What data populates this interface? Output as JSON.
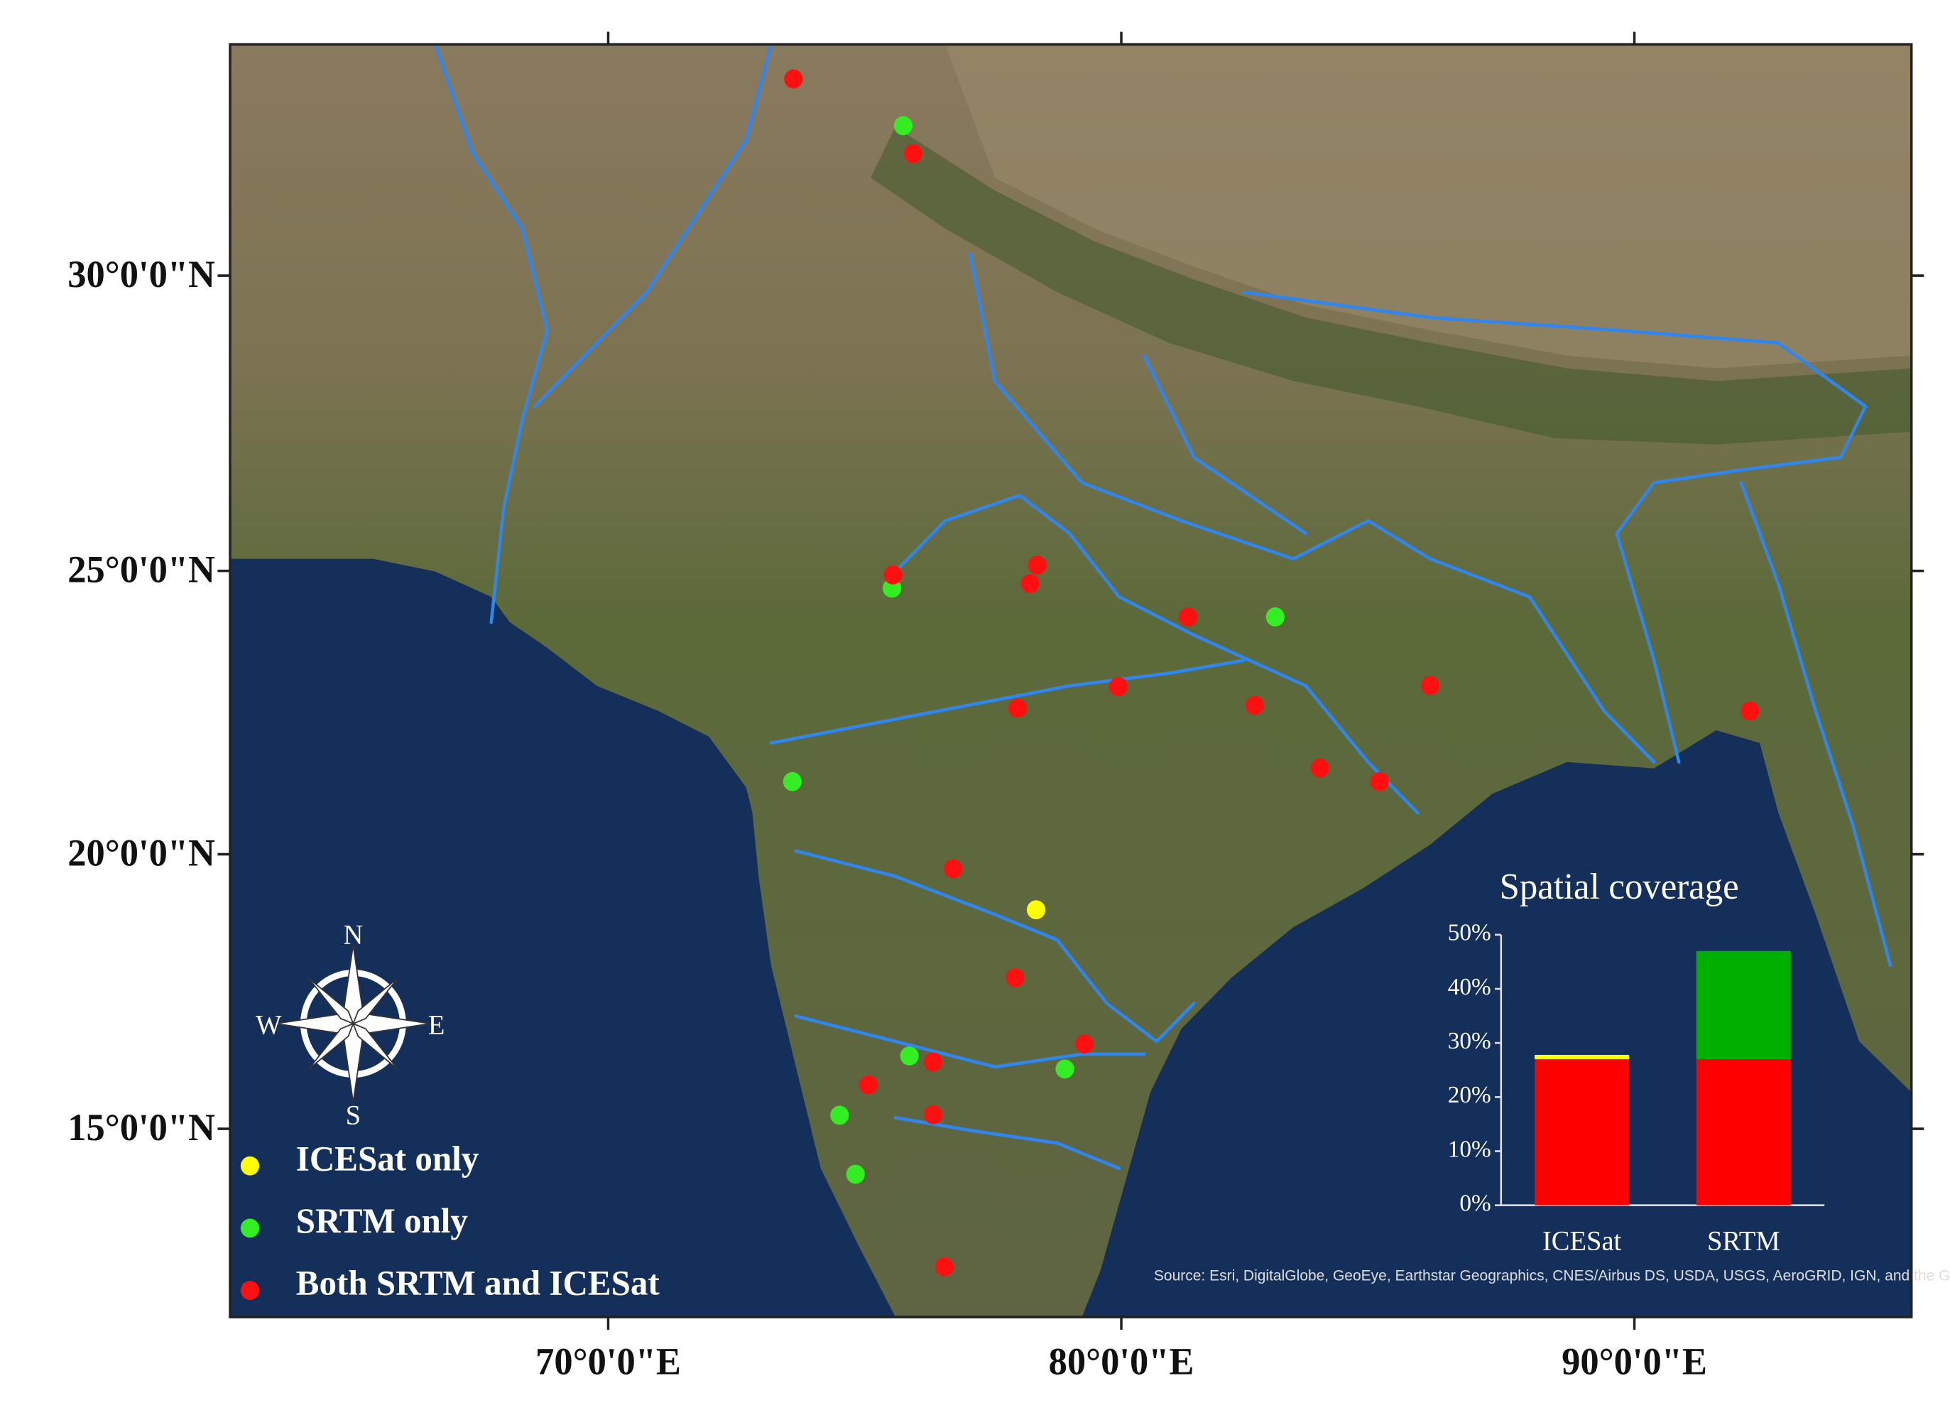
{
  "chart_data": [
    {
      "type": "scatter",
      "projection": "mercator",
      "xlim": [
        62.63,
        95.4
      ],
      "ylim": [
        11.5,
        33.75
      ],
      "xticks": [
        {
          "value": 70,
          "label": "70°0'0\"E"
        },
        {
          "value": 80,
          "label": "80°0'0\"E"
        },
        {
          "value": 90,
          "label": "90°0'0\"E"
        }
      ],
      "yticks": [
        {
          "value": 15,
          "label": "15°0'0\"N"
        },
        {
          "value": 20,
          "label": "20°0'0\"N"
        },
        {
          "value": 25,
          "label": "25°0'0\"N"
        },
        {
          "value": 30,
          "label": "30°0'0\"N"
        }
      ],
      "legend": "bottom-left",
      "series": [
        {
          "name": "ICESat only",
          "color": "#ffff00",
          "x": [
            78.34
          ],
          "values": [
            19.0
          ]
        },
        {
          "name": "SRTM only",
          "color": "#33ee22",
          "x": [
            75.75,
            75.53,
            83.0,
            73.59,
            75.87,
            78.9,
            74.51,
            74.82
          ],
          "values": [
            32.45,
            24.7,
            24.2,
            21.3,
            16.34,
            16.1,
            15.25,
            14.16
          ]
        },
        {
          "name": "Both SRTM and ICESat",
          "color": "#ff1010",
          "x": [
            73.61,
            75.94,
            75.55,
            78.36,
            78.22,
            81.3,
            79.94,
            77.98,
            82.6,
            86.02,
            92.25,
            83.87,
            85.03,
            76.72,
            77.93,
            79.28,
            76.33,
            75.07,
            76.33,
            76.55
          ],
          "values": [
            33.2,
            32.0,
            24.93,
            25.1,
            24.78,
            24.2,
            22.98,
            22.6,
            22.65,
            23.0,
            22.55,
            21.54,
            21.3,
            19.74,
            17.77,
            16.56,
            16.23,
            15.81,
            15.26,
            12.44
          ]
        }
      ],
      "compass": {
        "north": "N",
        "east": "E",
        "south": "S",
        "west": "W"
      },
      "attribution": "Source: Esri, DigitalGlobe, GeoEye, Earthstar Geographics, CNES/Airbus DS, USDA, USGS, AeroGRID, IGN, and the GIS User Community"
    },
    {
      "type": "bar",
      "stacked": true,
      "title": "Spatial coverage",
      "categories": [
        "ICESat",
        "SRTM"
      ],
      "series": [
        {
          "color": "#ff0000",
          "values": [
            27,
            27
          ]
        },
        {
          "color": "#ffff00",
          "values": [
            0.8,
            0
          ]
        },
        {
          "color": "#00b000",
          "values": [
            0,
            20
          ]
        }
      ],
      "ylim": [
        0,
        50
      ],
      "yticks": [
        {
          "value": 0,
          "label": "0%"
        },
        {
          "value": 10,
          "label": "10%"
        },
        {
          "value": 20,
          "label": "20%"
        },
        {
          "value": 30,
          "label": "30%"
        },
        {
          "value": 40,
          "label": "40%"
        },
        {
          "value": 50,
          "label": "50%"
        }
      ]
    }
  ]
}
